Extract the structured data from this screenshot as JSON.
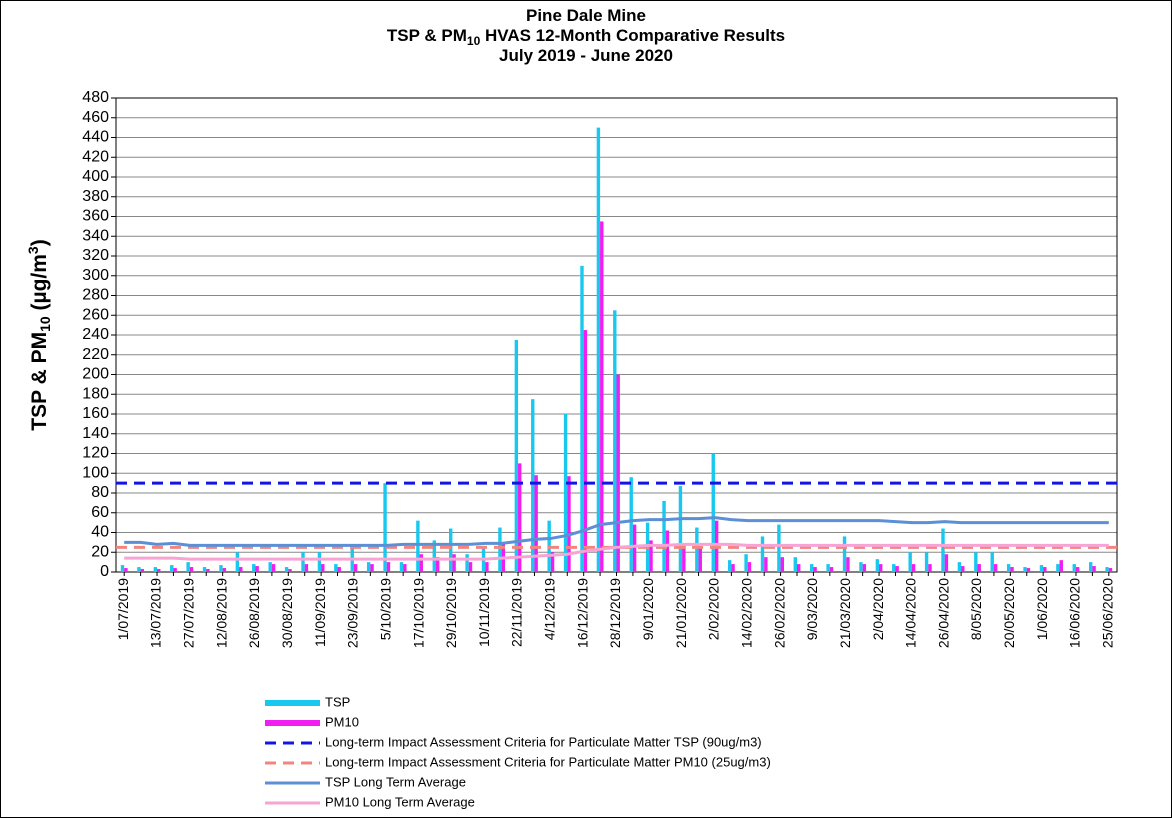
{
  "chart_data": {
    "type": "bar",
    "title_lines": [
      [
        "Pine Dale Mine"
      ],
      [
        "TSP & PM",
        "10",
        " HVAS 12-Month Comparative Results"
      ],
      [
        "July 2019 - June 2020"
      ]
    ],
    "y_label": [
      "TSP & PM",
      "10",
      " (µg/m",
      "3",
      ")"
    ],
    "categories": [
      "1/07/2019",
      null,
      "13/07/2019",
      null,
      "27/07/2019",
      null,
      "12/08/2019",
      null,
      "26/08/2019",
      null,
      "30/08/2019",
      null,
      "11/09/2019",
      null,
      "23/09/2019",
      null,
      "5/10/2019",
      null,
      "17/10/2019",
      null,
      "29/10/2019",
      null,
      "10/11/2019",
      null,
      "22/11/2019",
      null,
      "4/12/2019",
      null,
      "16/12/2019",
      null,
      "28/12/2019",
      null,
      "9/01/2020",
      null,
      "21/01/2020",
      null,
      "2/02/2020",
      null,
      "14/02/2020",
      null,
      "26/02/2020",
      null,
      "9/03/2020",
      null,
      "21/03/2020",
      null,
      "2/04/2020",
      null,
      "14/04/2020",
      null,
      "26/04/2020",
      null,
      "8/05/2020",
      null,
      "20/05/2020",
      null,
      "1/06/2020",
      null,
      "16/06/2020",
      null,
      "25/06/2020"
    ],
    "series": [
      {
        "name": "TSP",
        "type": "bar",
        "color": "#19c8ef",
        "values": [
          7,
          5,
          5,
          7,
          10,
          5,
          7,
          20,
          8,
          10,
          5,
          20,
          20,
          8,
          25,
          10,
          90,
          10,
          52,
          32,
          44,
          18,
          25,
          45,
          235,
          175,
          52,
          160,
          310,
          450,
          265,
          96,
          50,
          72,
          87,
          45,
          120,
          12,
          18,
          36,
          48,
          15,
          8,
          8,
          36,
          10,
          13,
          8,
          20,
          20,
          44,
          10,
          20,
          20,
          8,
          5,
          7,
          8,
          8,
          10,
          5
        ]
      },
      {
        "name": "PM10",
        "type": "bar",
        "color": "#f01ef0",
        "values": [
          4,
          3,
          3,
          4,
          5,
          3,
          4,
          5,
          6,
          8,
          3,
          8,
          8,
          5,
          8,
          8,
          10,
          8,
          18,
          15,
          18,
          10,
          10,
          28,
          110,
          98,
          20,
          97,
          245,
          355,
          200,
          48,
          32,
          42,
          28,
          25,
          52,
          8,
          10,
          15,
          15,
          8,
          5,
          5,
          15,
          8,
          8,
          6,
          8,
          8,
          18,
          6,
          8,
          8,
          5,
          4,
          5,
          12,
          5,
          6,
          4
        ]
      },
      {
        "name": "Long-term Impact Assessment Criteria for Particulate Matter TSP (90ug/m3)",
        "type": "hline",
        "color": "#1414e6",
        "value": 90
      },
      {
        "name": "Long-term Impact Assessment Criteria for Particulate Matter PM10 (25ug/m3)",
        "type": "hline",
        "color": "#f4857e",
        "value": 25
      },
      {
        "name": "TSP Long Term Average",
        "type": "line",
        "color": "#5b8fd6",
        "values": [
          30,
          30,
          28,
          29,
          27,
          27,
          27,
          27,
          27,
          27,
          27,
          27,
          27,
          27,
          27,
          27,
          27,
          28,
          28,
          28,
          28,
          28,
          29,
          29,
          31,
          33,
          34,
          37,
          42,
          48,
          50,
          52,
          53,
          53,
          54,
          54,
          55,
          53,
          52,
          52,
          52,
          52,
          52,
          52,
          52,
          52,
          52,
          51,
          50,
          50,
          51,
          50,
          50,
          50,
          50,
          50,
          50,
          50,
          50,
          50,
          50
        ]
      },
      {
        "name": "PM10 Long Term Average",
        "type": "line",
        "color": "#f7a4d4",
        "values": [
          14,
          14,
          14,
          14,
          13,
          13,
          13,
          13,
          13,
          13,
          13,
          13,
          13,
          13,
          13,
          13,
          13,
          13,
          13,
          13,
          13,
          13,
          13,
          14,
          15,
          16,
          17,
          18,
          21,
          23,
          25,
          26,
          27,
          27,
          28,
          28,
          28,
          28,
          27,
          27,
          27,
          27,
          27,
          27,
          27,
          27,
          27,
          27,
          27,
          27,
          27,
          27,
          27,
          27,
          27,
          27,
          27,
          27,
          27,
          27,
          27
        ]
      }
    ],
    "ylim": [
      0,
      480
    ],
    "yticks": [
      0,
      20,
      40,
      60,
      80,
      100,
      120,
      140,
      160,
      180,
      200,
      220,
      240,
      260,
      280,
      300,
      320,
      340,
      360,
      380,
      400,
      420,
      440,
      460,
      480
    ],
    "grid": true,
    "legend": "bottom-left"
  }
}
